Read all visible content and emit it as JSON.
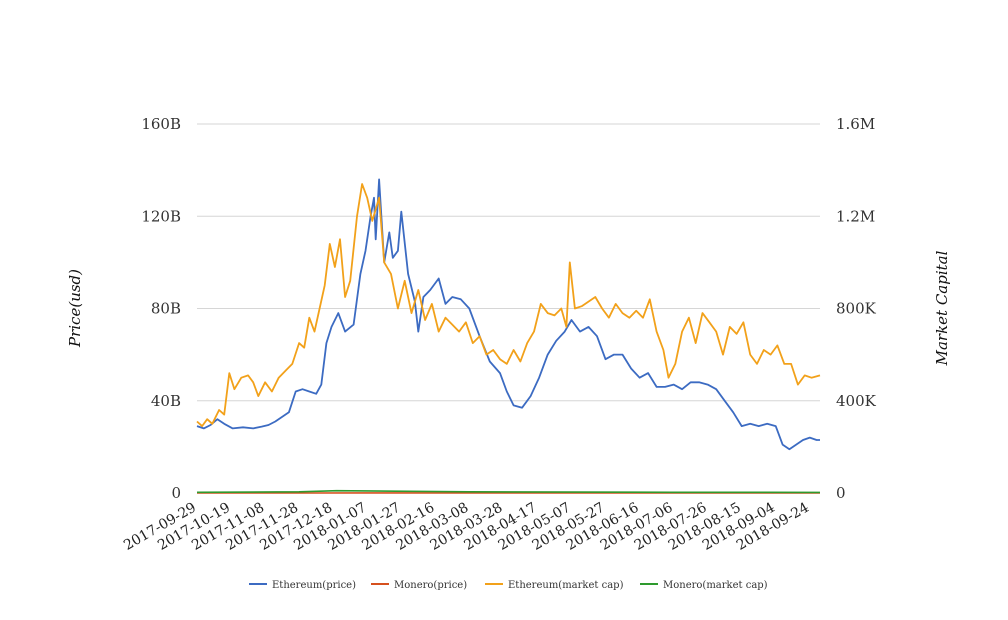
{
  "chart_data": {
    "type": "line",
    "title": "",
    "ylabel": "Price(usd)",
    "y2label": "Market Capital",
    "ylim": [
      0,
      160000000000
    ],
    "y2lim": [
      0,
      1600000
    ],
    "y_ticks": [
      {
        "value": 0,
        "label": "0"
      },
      {
        "value": 40000000000,
        "label": "40B"
      },
      {
        "value": 80000000000,
        "label": "80B"
      },
      {
        "value": 120000000000,
        "label": "120B"
      },
      {
        "value": 160000000000,
        "label": "160B"
      }
    ],
    "y2_ticks": [
      {
        "value": 0,
        "label": "0"
      },
      {
        "value": 400000,
        "label": "400K"
      },
      {
        "value": 800000,
        "label": "800K"
      },
      {
        "value": 1200000,
        "label": "1.2M"
      },
      {
        "value": 1600000,
        "label": "1.6M"
      }
    ],
    "x_range": [
      "2017-09-29",
      "2018-09-30"
    ],
    "x_ticks": [
      "2017-09-29",
      "2017-10-19",
      "2017-11-08",
      "2017-11-28",
      "2017-12-18",
      "2018-01-07",
      "2018-01-27",
      "2018-02-16",
      "2018-03-08",
      "2018-03-28",
      "2018-04-17",
      "2018-05-07",
      "2018-05-27",
      "2018-06-16",
      "2018-07-06",
      "2018-07-26",
      "2018-08-15",
      "2018-09-04",
      "2018-09-24"
    ],
    "grid": true,
    "legend_position": "bottom",
    "series": [
      {
        "name": "Ethereum(price)",
        "color": "#3c6bc2",
        "axis": "left",
        "points": [
          [
            "2017-09-29",
            29000000000
          ],
          [
            "2017-10-03",
            28000000000
          ],
          [
            "2017-10-07",
            29500000000
          ],
          [
            "2017-10-11",
            32000000000
          ],
          [
            "2017-10-15",
            30000000000
          ],
          [
            "2017-10-20",
            28000000000
          ],
          [
            "2017-10-26",
            28500000000
          ],
          [
            "2017-11-01",
            28000000000
          ],
          [
            "2017-11-06",
            28800000000
          ],
          [
            "2017-11-10",
            29500000000
          ],
          [
            "2017-11-14",
            31000000000
          ],
          [
            "2017-11-18",
            33000000000
          ],
          [
            "2017-11-22",
            35000000000
          ],
          [
            "2017-11-26",
            44000000000
          ],
          [
            "2017-11-30",
            45000000000
          ],
          [
            "2017-12-04",
            44000000000
          ],
          [
            "2017-12-08",
            43000000000
          ],
          [
            "2017-12-11",
            47000000000
          ],
          [
            "2017-12-14",
            65000000000
          ],
          [
            "2017-12-17",
            72000000000
          ],
          [
            "2017-12-21",
            78000000000
          ],
          [
            "2017-12-25",
            70000000000
          ],
          [
            "2017-12-30",
            73000000000
          ],
          [
            "2018-01-03",
            95000000000
          ],
          [
            "2018-01-06",
            105000000000
          ],
          [
            "2018-01-09",
            120000000000
          ],
          [
            "2018-01-11",
            128000000000
          ],
          [
            "2018-01-12",
            110000000000
          ],
          [
            "2018-01-14",
            136000000000
          ],
          [
            "2018-01-17",
            100000000000
          ],
          [
            "2018-01-20",
            113000000000
          ],
          [
            "2018-01-22",
            102000000000
          ],
          [
            "2018-01-25",
            105000000000
          ],
          [
            "2018-01-27",
            122000000000
          ],
          [
            "2018-01-31",
            95000000000
          ],
          [
            "2018-02-04",
            83000000000
          ],
          [
            "2018-02-06",
            70000000000
          ],
          [
            "2018-02-09",
            85000000000
          ],
          [
            "2018-02-13",
            88000000000
          ],
          [
            "2018-02-18",
            93000000000
          ],
          [
            "2018-02-22",
            82000000000
          ],
          [
            "2018-02-26",
            85000000000
          ],
          [
            "2018-03-03",
            84000000000
          ],
          [
            "2018-03-08",
            80000000000
          ],
          [
            "2018-03-14",
            68000000000
          ],
          [
            "2018-03-20",
            57000000000
          ],
          [
            "2018-03-26",
            52000000000
          ],
          [
            "2018-03-30",
            44000000000
          ],
          [
            "2018-04-03",
            38000000000
          ],
          [
            "2018-04-08",
            37000000000
          ],
          [
            "2018-04-13",
            42000000000
          ],
          [
            "2018-04-18",
            50000000000
          ],
          [
            "2018-04-23",
            60000000000
          ],
          [
            "2018-04-28",
            66000000000
          ],
          [
            "2018-05-03",
            70000000000
          ],
          [
            "2018-05-07",
            75000000000
          ],
          [
            "2018-05-12",
            70000000000
          ],
          [
            "2018-05-17",
            72000000000
          ],
          [
            "2018-05-22",
            68000000000
          ],
          [
            "2018-05-27",
            58000000000
          ],
          [
            "2018-06-01",
            60000000000
          ],
          [
            "2018-06-06",
            60000000000
          ],
          [
            "2018-06-11",
            54000000000
          ],
          [
            "2018-06-16",
            50000000000
          ],
          [
            "2018-06-21",
            52000000000
          ],
          [
            "2018-06-26",
            46000000000
          ],
          [
            "2018-07-01",
            46000000000
          ],
          [
            "2018-07-06",
            47000000000
          ],
          [
            "2018-07-11",
            45000000000
          ],
          [
            "2018-07-16",
            48000000000
          ],
          [
            "2018-07-21",
            48000000000
          ],
          [
            "2018-07-26",
            47000000000
          ],
          [
            "2018-07-31",
            45000000000
          ],
          [
            "2018-08-05",
            40000000000
          ],
          [
            "2018-08-10",
            35000000000
          ],
          [
            "2018-08-15",
            29000000000
          ],
          [
            "2018-08-20",
            30000000000
          ],
          [
            "2018-08-25",
            29000000000
          ],
          [
            "2018-08-30",
            30000000000
          ],
          [
            "2018-09-04",
            29000000000
          ],
          [
            "2018-09-08",
            21000000000
          ],
          [
            "2018-09-12",
            19000000000
          ],
          [
            "2018-09-16",
            21000000000
          ],
          [
            "2018-09-20",
            23000000000
          ],
          [
            "2018-09-24",
            24000000000
          ],
          [
            "2018-09-28",
            23000000000
          ],
          [
            "2018-09-30",
            23000000000
          ]
        ]
      },
      {
        "name": "Monero(price)",
        "color": "#d6501e",
        "axis": "right",
        "points": [
          [
            "2017-09-29",
            100
          ],
          [
            "2017-11-28",
            200
          ],
          [
            "2018-01-07",
            400
          ],
          [
            "2018-03-08",
            250
          ],
          [
            "2018-05-07",
            200
          ],
          [
            "2018-07-06",
            150
          ],
          [
            "2018-09-30",
            120
          ]
        ]
      },
      {
        "name": "Ethereum(market cap)",
        "color": "#f2a11a",
        "axis": "right",
        "points": [
          [
            "2017-09-29",
            310000
          ],
          [
            "2017-10-02",
            290000
          ],
          [
            "2017-10-05",
            320000
          ],
          [
            "2017-10-08",
            300000
          ],
          [
            "2017-10-12",
            360000
          ],
          [
            "2017-10-15",
            340000
          ],
          [
            "2017-10-18",
            520000
          ],
          [
            "2017-10-21",
            450000
          ],
          [
            "2017-10-25",
            500000
          ],
          [
            "2017-10-29",
            510000
          ],
          [
            "2017-11-01",
            480000
          ],
          [
            "2017-11-04",
            420000
          ],
          [
            "2017-11-08",
            480000
          ],
          [
            "2017-11-12",
            440000
          ],
          [
            "2017-11-16",
            500000
          ],
          [
            "2017-11-20",
            530000
          ],
          [
            "2017-11-24",
            560000
          ],
          [
            "2017-11-28",
            650000
          ],
          [
            "2017-12-01",
            630000
          ],
          [
            "2017-12-04",
            760000
          ],
          [
            "2017-12-07",
            700000
          ],
          [
            "2017-12-10",
            800000
          ],
          [
            "2017-12-13",
            900000
          ],
          [
            "2017-12-16",
            1080000
          ],
          [
            "2017-12-19",
            980000
          ],
          [
            "2017-12-22",
            1100000
          ],
          [
            "2017-12-25",
            850000
          ],
          [
            "2017-12-28",
            920000
          ],
          [
            "2018-01-01",
            1200000
          ],
          [
            "2018-01-04",
            1340000
          ],
          [
            "2018-01-07",
            1280000
          ],
          [
            "2018-01-10",
            1180000
          ],
          [
            "2018-01-14",
            1280000
          ],
          [
            "2018-01-17",
            1000000
          ],
          [
            "2018-01-21",
            950000
          ],
          [
            "2018-01-25",
            800000
          ],
          [
            "2018-01-29",
            920000
          ],
          [
            "2018-02-02",
            780000
          ],
          [
            "2018-02-06",
            880000
          ],
          [
            "2018-02-10",
            750000
          ],
          [
            "2018-02-14",
            820000
          ],
          [
            "2018-02-18",
            700000
          ],
          [
            "2018-02-22",
            760000
          ],
          [
            "2018-02-26",
            730000
          ],
          [
            "2018-03-02",
            700000
          ],
          [
            "2018-03-06",
            740000
          ],
          [
            "2018-03-10",
            650000
          ],
          [
            "2018-03-14",
            680000
          ],
          [
            "2018-03-18",
            600000
          ],
          [
            "2018-03-22",
            620000
          ],
          [
            "2018-03-26",
            580000
          ],
          [
            "2018-03-30",
            560000
          ],
          [
            "2018-04-03",
            620000
          ],
          [
            "2018-04-07",
            570000
          ],
          [
            "2018-04-11",
            650000
          ],
          [
            "2018-04-15",
            700000
          ],
          [
            "2018-04-19",
            820000
          ],
          [
            "2018-04-23",
            780000
          ],
          [
            "2018-04-27",
            770000
          ],
          [
            "2018-05-01",
            800000
          ],
          [
            "2018-05-04",
            720000
          ],
          [
            "2018-05-06",
            1000000
          ],
          [
            "2018-05-09",
            800000
          ],
          [
            "2018-05-13",
            810000
          ],
          [
            "2018-05-17",
            830000
          ],
          [
            "2018-05-21",
            850000
          ],
          [
            "2018-05-25",
            800000
          ],
          [
            "2018-05-29",
            760000
          ],
          [
            "2018-06-02",
            820000
          ],
          [
            "2018-06-06",
            780000
          ],
          [
            "2018-06-10",
            760000
          ],
          [
            "2018-06-14",
            790000
          ],
          [
            "2018-06-18",
            760000
          ],
          [
            "2018-06-22",
            840000
          ],
          [
            "2018-06-26",
            700000
          ],
          [
            "2018-06-30",
            620000
          ],
          [
            "2018-07-03",
            500000
          ],
          [
            "2018-07-07",
            560000
          ],
          [
            "2018-07-11",
            700000
          ],
          [
            "2018-07-15",
            760000
          ],
          [
            "2018-07-19",
            650000
          ],
          [
            "2018-07-23",
            780000
          ],
          [
            "2018-07-27",
            740000
          ],
          [
            "2018-07-31",
            700000
          ],
          [
            "2018-08-04",
            600000
          ],
          [
            "2018-08-08",
            720000
          ],
          [
            "2018-08-12",
            690000
          ],
          [
            "2018-08-16",
            740000
          ],
          [
            "2018-08-20",
            600000
          ],
          [
            "2018-08-24",
            560000
          ],
          [
            "2018-08-28",
            620000
          ],
          [
            "2018-09-01",
            600000
          ],
          [
            "2018-09-05",
            640000
          ],
          [
            "2018-09-09",
            560000
          ],
          [
            "2018-09-13",
            560000
          ],
          [
            "2018-09-17",
            470000
          ],
          [
            "2018-09-21",
            510000
          ],
          [
            "2018-09-25",
            500000
          ],
          [
            "2018-09-30",
            510000
          ]
        ]
      },
      {
        "name": "Monero(market cap)",
        "color": "#2e9a2e",
        "axis": "left",
        "points": [
          [
            "2017-09-29",
            300000000
          ],
          [
            "2017-11-28",
            500000000
          ],
          [
            "2017-12-20",
            1000000000
          ],
          [
            "2018-01-07",
            900000000
          ],
          [
            "2018-03-08",
            500000000
          ],
          [
            "2018-05-07",
            400000000
          ],
          [
            "2018-07-06",
            300000000
          ],
          [
            "2018-09-30",
            250000000
          ]
        ]
      }
    ]
  }
}
